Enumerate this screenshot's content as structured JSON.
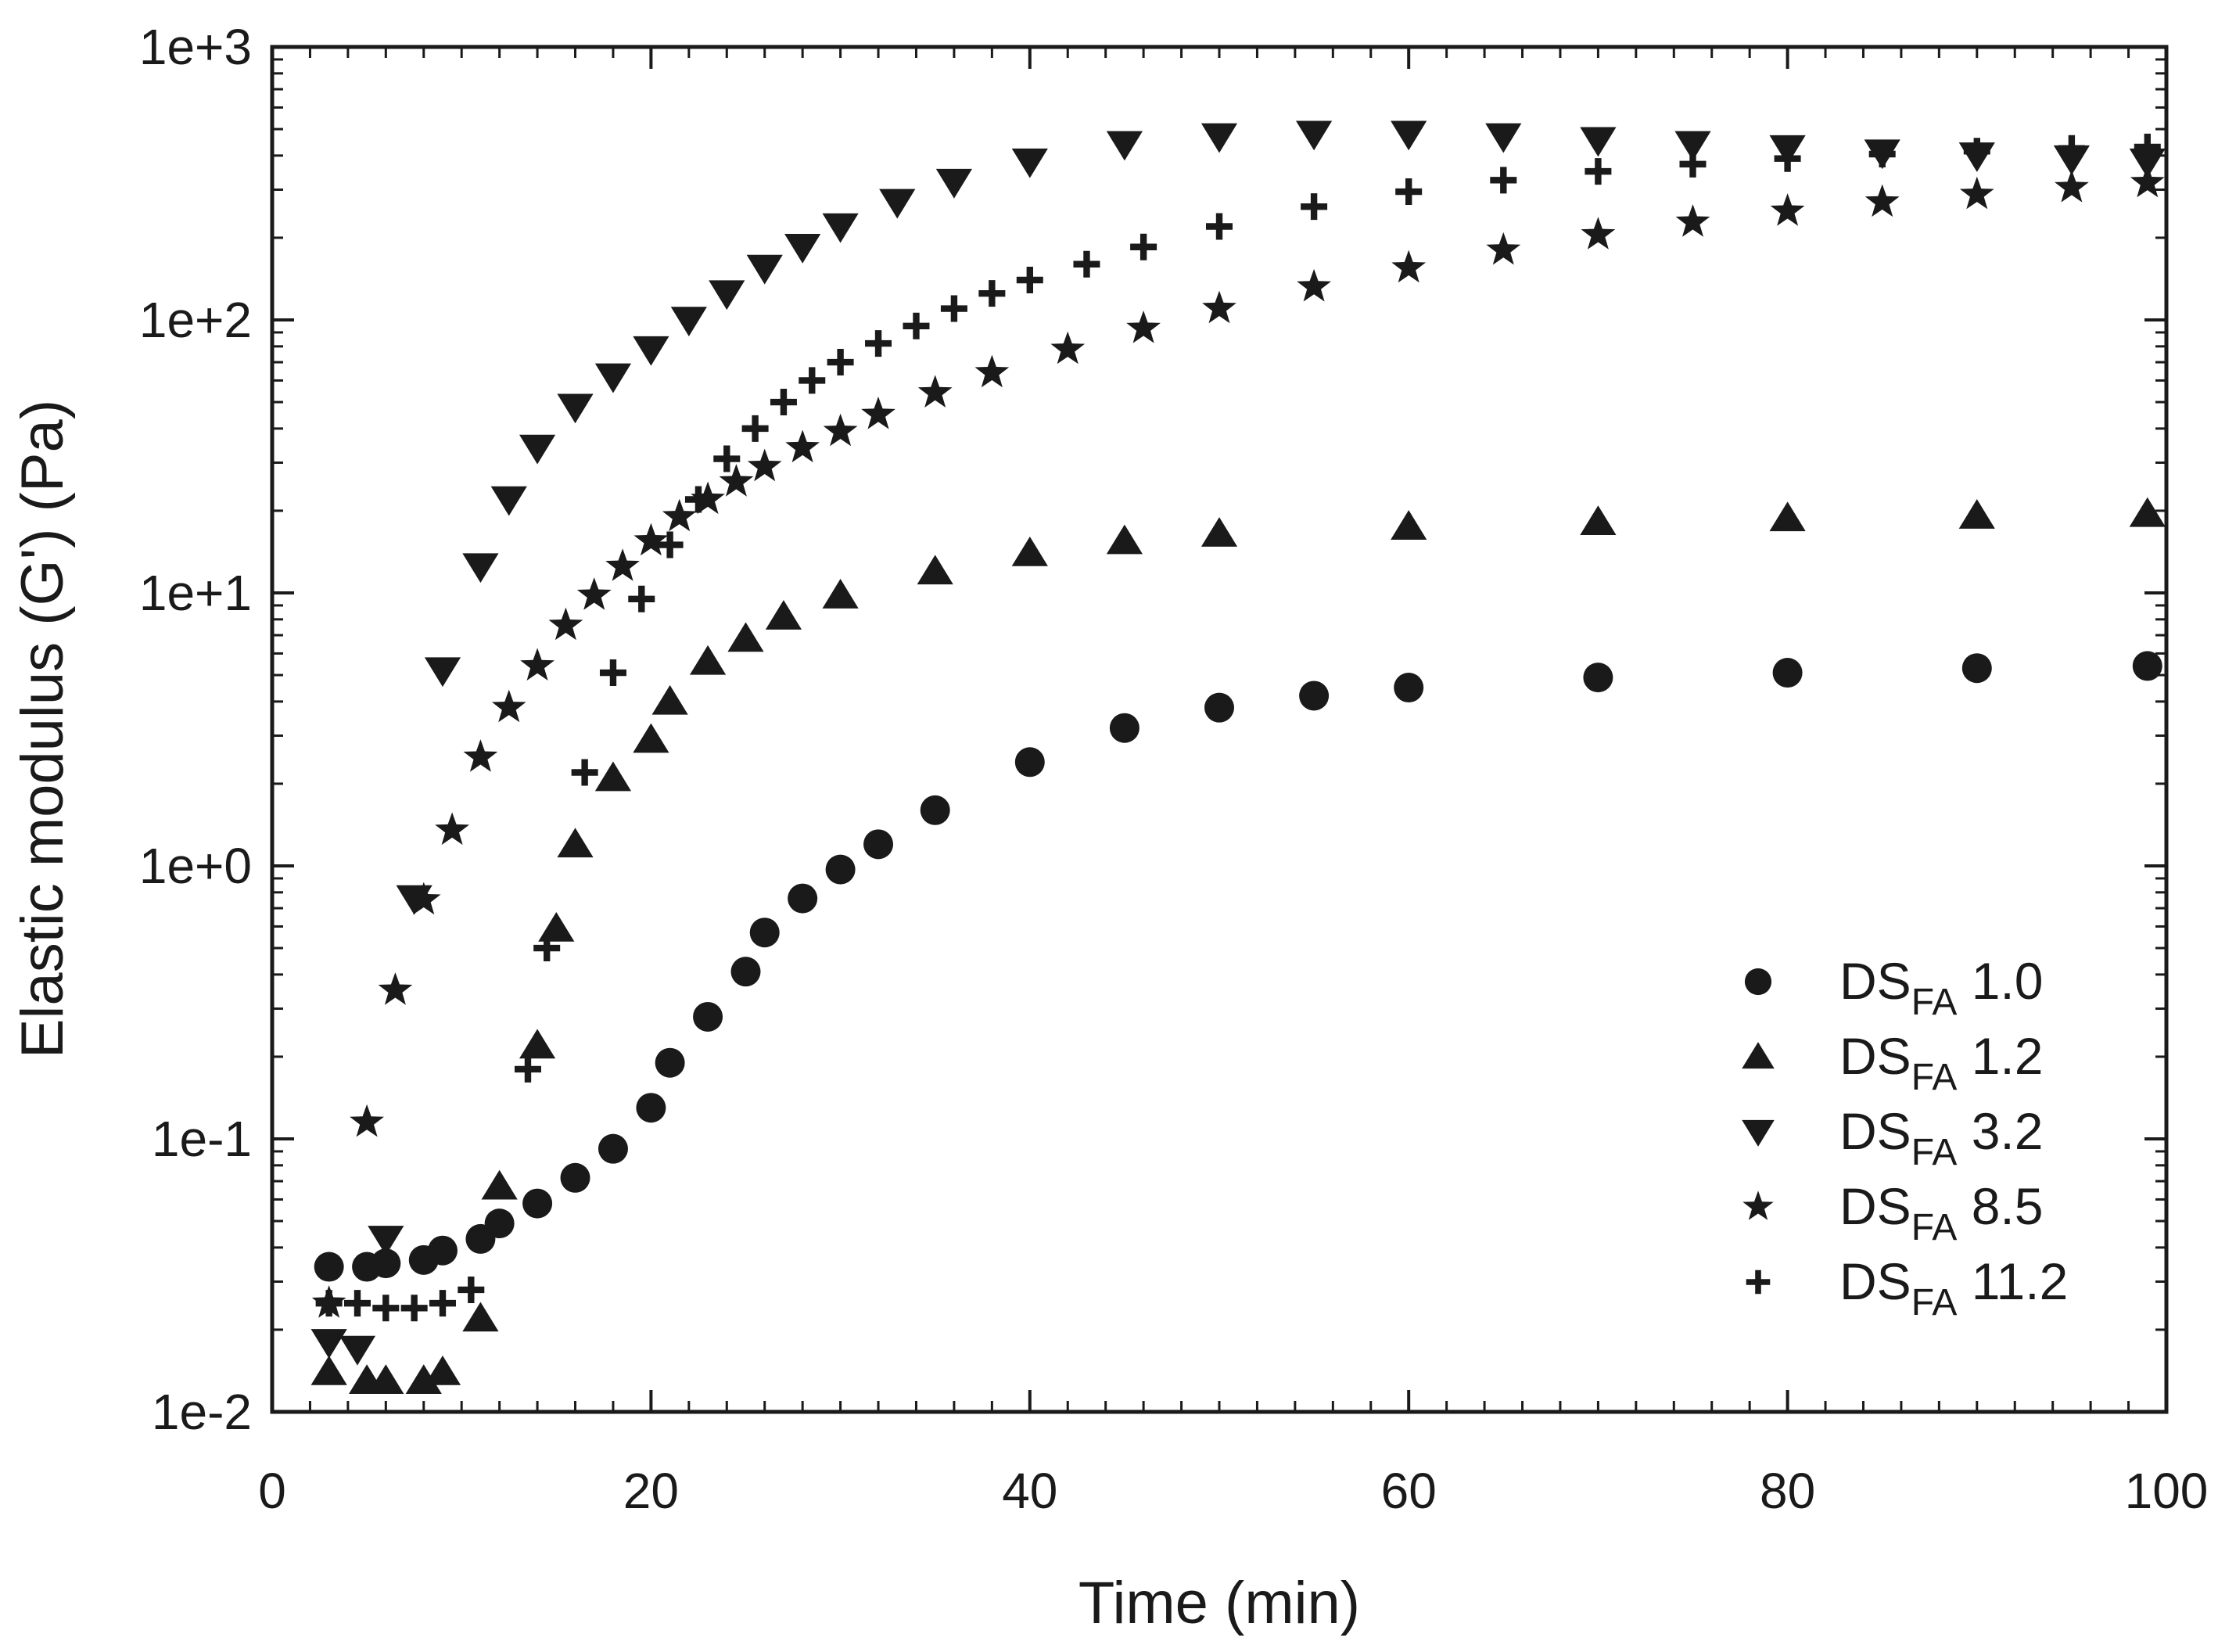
{
  "chart_data": {
    "type": "scatter",
    "title": "",
    "xlabel": "Time (min)",
    "ylabel": "Elastic modulus (G') (Pa)",
    "xlim": [
      0,
      100
    ],
    "ylim": [
      0.01,
      1000
    ],
    "yscale": "log",
    "grid": false,
    "legend_position": "bottom-right",
    "x_ticks": [
      0,
      20,
      40,
      60,
      80,
      100
    ],
    "x_tick_labels": [
      "0",
      "20",
      "40",
      "60",
      "80",
      "100"
    ],
    "y_ticks": [
      0.01,
      0.1,
      1,
      10,
      100,
      1000
    ],
    "y_tick_labels": [
      "1e-2",
      "1e-1",
      "1e+0",
      "1e+1",
      "1e+2",
      "1e+3"
    ],
    "series": [
      {
        "name": "DSFA 1.0",
        "label_main": "DS",
        "label_sub": "FA",
        "label_value": "1.0",
        "marker": "circle",
        "x": [
          3,
          5,
          6,
          8,
          9,
          11,
          12,
          14,
          16,
          18,
          20,
          21,
          23,
          25,
          26,
          28,
          30,
          32,
          35,
          40,
          45,
          50,
          55,
          60,
          70,
          80,
          90,
          99
        ],
        "y": [
          0.034,
          0.034,
          0.035,
          0.036,
          0.039,
          0.043,
          0.049,
          0.058,
          0.072,
          0.092,
          0.13,
          0.19,
          0.28,
          0.41,
          0.57,
          0.76,
          0.97,
          1.2,
          1.6,
          2.4,
          3.2,
          3.8,
          4.2,
          4.5,
          4.9,
          5.1,
          5.3,
          5.4
        ]
      },
      {
        "name": "DSFA 1.2",
        "label_main": "DS",
        "label_sub": "FA",
        "label_value": "1.2",
        "marker": "triangle-up",
        "x": [
          3,
          5,
          6,
          8,
          9,
          11,
          12,
          14,
          15,
          16,
          18,
          20,
          21,
          23,
          25,
          27,
          30,
          35,
          40,
          45,
          50,
          60,
          70,
          80,
          90,
          99
        ],
        "y": [
          0.014,
          0.013,
          0.013,
          0.013,
          0.014,
          0.022,
          0.067,
          0.22,
          0.59,
          1.2,
          2.1,
          2.9,
          4.0,
          5.6,
          6.8,
          8.2,
          9.8,
          12,
          14,
          15.5,
          16.5,
          17.5,
          18.2,
          18.8,
          19.2,
          19.5
        ]
      },
      {
        "name": "DSFA 3.2",
        "label_main": "DS",
        "label_sub": "FA",
        "label_value": "3.2",
        "marker": "triangle-down",
        "x": [
          3,
          4.5,
          6,
          7.5,
          9,
          11,
          12.5,
          14,
          16,
          18,
          20,
          22,
          24,
          26,
          28,
          30,
          33,
          36,
          40,
          45,
          50,
          55,
          60,
          65,
          70,
          75,
          80,
          85,
          90,
          95,
          99
        ],
        "y": [
          0.018,
          0.017,
          0.043,
          0.76,
          5.2,
          12.5,
          22,
          34,
          48,
          62,
          78,
          100,
          125,
          155,
          185,
          220,
          270,
          320,
          380,
          440,
          470,
          480,
          480,
          470,
          455,
          440,
          425,
          410,
          400,
          390,
          380
        ]
      },
      {
        "name": "DSFA 8.5",
        "label_main": "DS",
        "label_sub": "FA",
        "label_value": "8.5",
        "marker": "star",
        "x": [
          3,
          5,
          6.5,
          8,
          9.5,
          11,
          12.5,
          14,
          15.5,
          17,
          18.5,
          20,
          21.5,
          23,
          24.5,
          26,
          28,
          30,
          32,
          35,
          38,
          42,
          46,
          50,
          55,
          60,
          65,
          70,
          75,
          80,
          85,
          90,
          95,
          99
        ],
        "y": [
          0.025,
          0.115,
          0.35,
          0.75,
          1.35,
          2.5,
          3.8,
          5.4,
          7.6,
          9.8,
          12.5,
          15.5,
          19,
          22,
          25.5,
          29,
          34,
          39,
          45,
          54,
          64,
          78,
          93,
          110,
          132,
          155,
          180,
          205,
          228,
          250,
          270,
          288,
          305,
          318
        ]
      },
      {
        "name": "DSFA 11.2",
        "label_main": "DS",
        "label_sub": "FA",
        "label_value": "11.2",
        "marker": "plus",
        "x": [
          3,
          4.5,
          6,
          7.5,
          9,
          10.5,
          13.5,
          14.5,
          16.5,
          18,
          19.5,
          21,
          22.5,
          24,
          25.5,
          27,
          28.5,
          30,
          32,
          34,
          36,
          38,
          40,
          43,
          46,
          50,
          55,
          60,
          65,
          70,
          75,
          80,
          85,
          90,
          95,
          99
        ],
        "y": [
          0.025,
          0.025,
          0.024,
          0.024,
          0.025,
          0.028,
          0.18,
          0.5,
          2.2,
          5.1,
          9.5,
          15,
          22,
          31,
          40,
          50,
          60,
          70,
          82,
          95,
          110,
          125,
          140,
          160,
          185,
          220,
          260,
          295,
          325,
          350,
          372,
          390,
          405,
          415,
          425,
          430
        ]
      }
    ]
  }
}
